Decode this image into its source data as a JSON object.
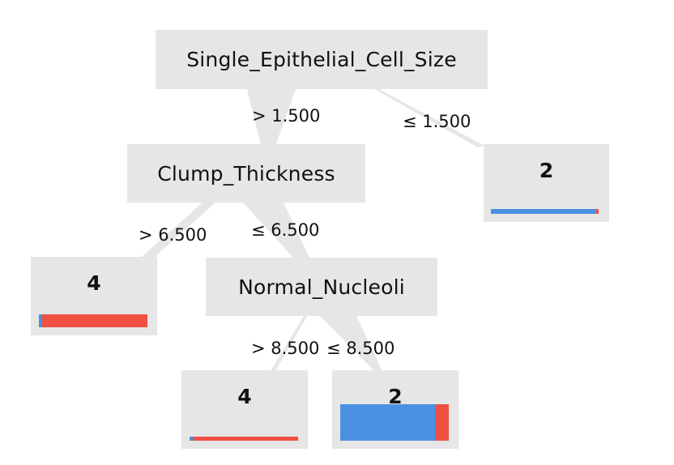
{
  "colors": {
    "node_background": "#e6e6e6",
    "edge": "#e6e6e6",
    "class_2": "#4a90e2",
    "class_4": "#ef5042"
  },
  "tree": {
    "root": {
      "feature": "Single_Epithelial_Cell_Size",
      "branch_gt_label": "> 1.500",
      "branch_le_label": "≤ 1.500"
    },
    "clump": {
      "feature": "Clump_Thickness",
      "branch_gt_label": "> 6.500",
      "branch_le_label": "≤ 6.500"
    },
    "nucleoli": {
      "feature": "Normal_Nucleoli",
      "branch_gt_label": "> 8.500",
      "branch_le_label": "≤ 8.500"
    },
    "leaves": {
      "root_le": {
        "label": "2",
        "class_2_fraction": 0.98,
        "class_4_fraction": 0.02
      },
      "clump_gt": {
        "label": "4",
        "class_2_fraction": 0.03,
        "class_4_fraction": 0.97
      },
      "nucleoli_gt": {
        "label": "4",
        "class_2_fraction": 0.03,
        "class_4_fraction": 0.97
      },
      "nucleoli_le": {
        "label": "2",
        "class_2_fraction": 0.87,
        "class_4_fraction": 0.13
      }
    }
  }
}
